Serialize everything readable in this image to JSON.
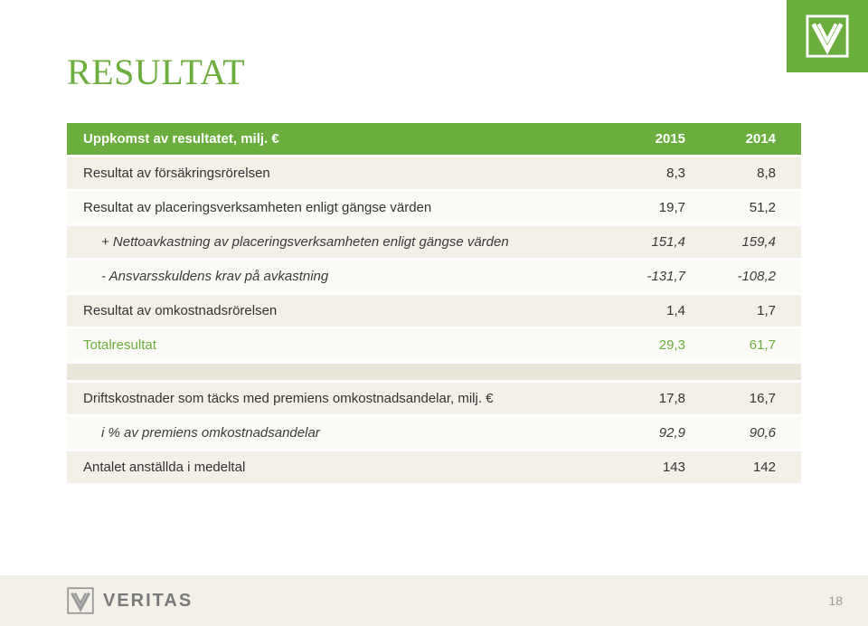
{
  "title": "RESULTAT",
  "brand": "VERITAS",
  "page_number": "18",
  "colors": {
    "accent": "#6cae3e",
    "band_a": "#f3f0e8",
    "band_b": "#fbfaf6",
    "gap": "#e9e5d8",
    "footer_bg": "#f3f0e8",
    "text": "#333333",
    "muted": "#7a7a7a"
  },
  "table": {
    "header": {
      "label": "Uppkomst av resultatet, milj. €",
      "col1": "2015",
      "col2": "2014"
    },
    "rows": [
      {
        "kind": "row-a",
        "label": "Resultat av försäkringsrörelsen",
        "c1": "8,3",
        "c2": "8,8"
      },
      {
        "kind": "row-b",
        "label": "Resultat av placeringsverksamheten enligt gängse värden",
        "c1": "19,7",
        "c2": "51,2"
      },
      {
        "kind": "row-a sub",
        "label": "+ Nettoavkastning av placeringsverksamheten enligt gängse värden",
        "c1": "151,4",
        "c2": "159,4"
      },
      {
        "kind": "row-b sub",
        "label": "- Ansvarsskuldens krav på avkastning",
        "c1": "-131,7",
        "c2": "-108,2"
      },
      {
        "kind": "row-a",
        "label": "Resultat av omkostnadsrörelsen",
        "c1": "1,4",
        "c2": "1,7"
      },
      {
        "kind": "row-b total",
        "label": "Totalresultat",
        "c1": "29,3",
        "c2": "61,7"
      },
      {
        "kind": "gap"
      },
      {
        "kind": "row-a",
        "label": "Driftskostnader som täcks med premiens omkostnadsandelar, milj. €",
        "c1": "17,8",
        "c2": "16,7"
      },
      {
        "kind": "row-b sub",
        "label": "i % av premiens omkostnadsandelar",
        "c1": "92,9",
        "c2": "90,6"
      },
      {
        "kind": "row-a",
        "label": "Antalet anställda i medeltal",
        "c1": "143",
        "c2": "142"
      }
    ]
  }
}
